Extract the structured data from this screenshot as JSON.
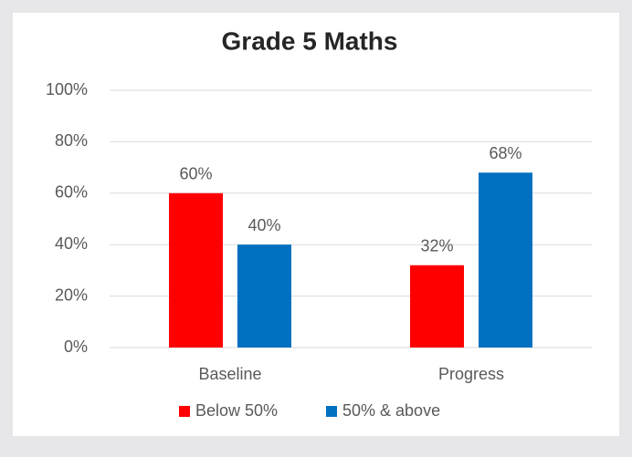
{
  "chart_data": {
    "type": "bar",
    "title": "Grade 5 Maths",
    "categories": [
      "Baseline",
      "Progress"
    ],
    "series": [
      {
        "name": "Below 50%",
        "color": "#ff0000",
        "values": [
          60,
          32
        ],
        "value_labels": [
          "60%",
          "32%"
        ]
      },
      {
        "name": "50% & above",
        "color": "#0070c0",
        "values": [
          40,
          68
        ],
        "value_labels": [
          "40%",
          "68%"
        ]
      }
    ],
    "ylim": [
      0,
      100
    ],
    "yticks": [
      {
        "value": 0,
        "label": "0%"
      },
      {
        "value": 20,
        "label": "20%"
      },
      {
        "value": 40,
        "label": "40%"
      },
      {
        "value": 60,
        "label": "60%"
      },
      {
        "value": 80,
        "label": "80%"
      },
      {
        "value": 100,
        "label": "100%"
      }
    ],
    "grid": true,
    "legend": "bottom"
  }
}
